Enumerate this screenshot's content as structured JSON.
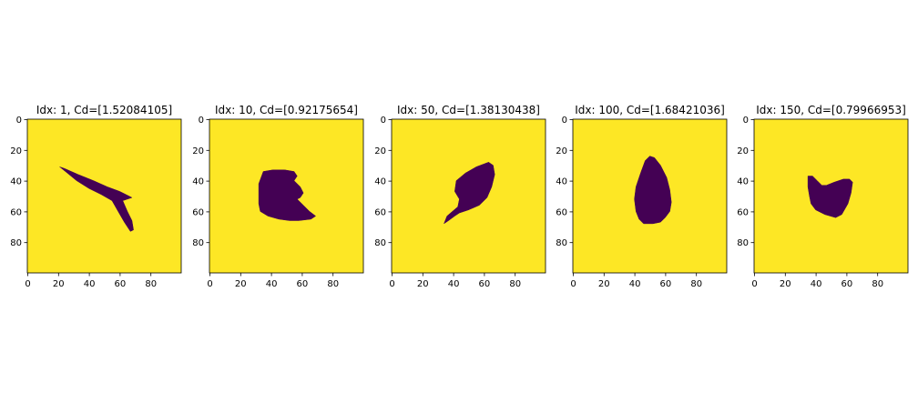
{
  "chart_data": [
    {
      "type": "image",
      "title": "Idx: 1, Cd=[1.52084105]",
      "xlim": [
        0,
        100
      ],
      "ylim": [
        0,
        100
      ],
      "xticks": [
        "0",
        "20",
        "40",
        "60",
        "80"
      ],
      "yticks": [
        "0",
        "20",
        "40",
        "60",
        "80"
      ],
      "background_color": "#fde725",
      "shape_color": "#440154",
      "shape_polygon": [
        [
          21,
          31
        ],
        [
          24,
          32
        ],
        [
          33,
          36
        ],
        [
          43,
          40
        ],
        [
          52,
          44
        ],
        [
          60,
          47
        ],
        [
          64,
          49
        ],
        [
          68,
          51
        ],
        [
          62,
          53
        ],
        [
          65,
          60
        ],
        [
          68,
          66
        ],
        [
          69,
          72
        ],
        [
          67,
          73
        ],
        [
          63,
          67
        ],
        [
          59,
          60
        ],
        [
          55,
          53
        ],
        [
          48,
          49
        ],
        [
          40,
          45
        ],
        [
          32,
          40
        ],
        [
          26,
          35
        ]
      ]
    },
    {
      "type": "image",
      "title": "Idx: 10, Cd=[0.92175654]",
      "xlim": [
        0,
        100
      ],
      "ylim": [
        0,
        100
      ],
      "xticks": [
        "0",
        "20",
        "40",
        "60",
        "80"
      ],
      "yticks": [
        "0",
        "20",
        "40",
        "60",
        "80"
      ],
      "background_color": "#fde725",
      "shape_color": "#440154",
      "shape_polygon": [
        [
          35,
          34
        ],
        [
          41,
          33
        ],
        [
          49,
          33
        ],
        [
          55,
          34
        ],
        [
          57,
          37
        ],
        [
          55,
          40
        ],
        [
          59,
          44
        ],
        [
          61,
          48
        ],
        [
          59,
          51
        ],
        [
          57,
          52
        ],
        [
          61,
          56
        ],
        [
          65,
          60
        ],
        [
          69,
          63
        ],
        [
          66,
          65
        ],
        [
          58,
          66
        ],
        [
          52,
          66
        ],
        [
          45,
          65
        ],
        [
          38,
          63
        ],
        [
          33,
          60
        ],
        [
          32,
          55
        ],
        [
          32,
          48
        ],
        [
          32,
          42
        ]
      ]
    },
    {
      "type": "image",
      "title": "Idx: 50, Cd=[1.38130438]",
      "xlim": [
        0,
        100
      ],
      "ylim": [
        0,
        100
      ],
      "xticks": [
        "0",
        "20",
        "40",
        "60",
        "80"
      ],
      "yticks": [
        "0",
        "20",
        "40",
        "60",
        "80"
      ],
      "background_color": "#fde725",
      "shape_color": "#440154",
      "shape_polygon": [
        [
          63,
          28
        ],
        [
          66,
          30
        ],
        [
          67,
          36
        ],
        [
          65,
          44
        ],
        [
          62,
          51
        ],
        [
          57,
          56
        ],
        [
          50,
          59
        ],
        [
          44,
          61
        ],
        [
          41,
          63
        ],
        [
          37,
          66
        ],
        [
          34,
          68
        ],
        [
          36,
          63
        ],
        [
          43,
          57
        ],
        [
          44,
          52
        ],
        [
          41,
          47
        ],
        [
          42,
          40
        ],
        [
          48,
          35
        ],
        [
          55,
          31
        ]
      ]
    },
    {
      "type": "image",
      "title": "Idx: 100, Cd=[1.68421036]",
      "xlim": [
        0,
        100
      ],
      "ylim": [
        0,
        100
      ],
      "xticks": [
        "0",
        "20",
        "40",
        "60",
        "80"
      ],
      "yticks": [
        "0",
        "20",
        "40",
        "60",
        "80"
      ],
      "background_color": "#fde725",
      "shape_color": "#440154",
      "shape_polygon": [
        [
          50,
          24
        ],
        [
          53,
          25
        ],
        [
          57,
          30
        ],
        [
          61,
          38
        ],
        [
          63,
          46
        ],
        [
          64,
          54
        ],
        [
          63,
          60
        ],
        [
          60,
          64
        ],
        [
          57,
          67
        ],
        [
          52,
          68
        ],
        [
          46,
          68
        ],
        [
          43,
          65
        ],
        [
          41,
          60
        ],
        [
          40,
          52
        ],
        [
          41,
          44
        ],
        [
          44,
          35
        ],
        [
          47,
          27
        ]
      ]
    },
    {
      "type": "image",
      "title": "Idx: 150, Cd=[0.79966953]",
      "xlim": [
        0,
        100
      ],
      "ylim": [
        0,
        100
      ],
      "xticks": [
        "0",
        "20",
        "40",
        "60",
        "80"
      ],
      "yticks": [
        "0",
        "20",
        "40",
        "60",
        "80"
      ],
      "background_color": "#fde725",
      "shape_color": "#440154",
      "shape_polygon": [
        [
          35,
          37
        ],
        [
          38,
          37
        ],
        [
          41,
          40
        ],
        [
          44,
          43
        ],
        [
          47,
          43
        ],
        [
          52,
          41
        ],
        [
          58,
          39
        ],
        [
          62,
          39
        ],
        [
          64,
          41
        ],
        [
          63,
          48
        ],
        [
          61,
          55
        ],
        [
          57,
          62
        ],
        [
          53,
          64
        ],
        [
          46,
          62
        ],
        [
          40,
          59
        ],
        [
          37,
          55
        ],
        [
          36,
          50
        ],
        [
          35,
          44
        ]
      ]
    }
  ]
}
